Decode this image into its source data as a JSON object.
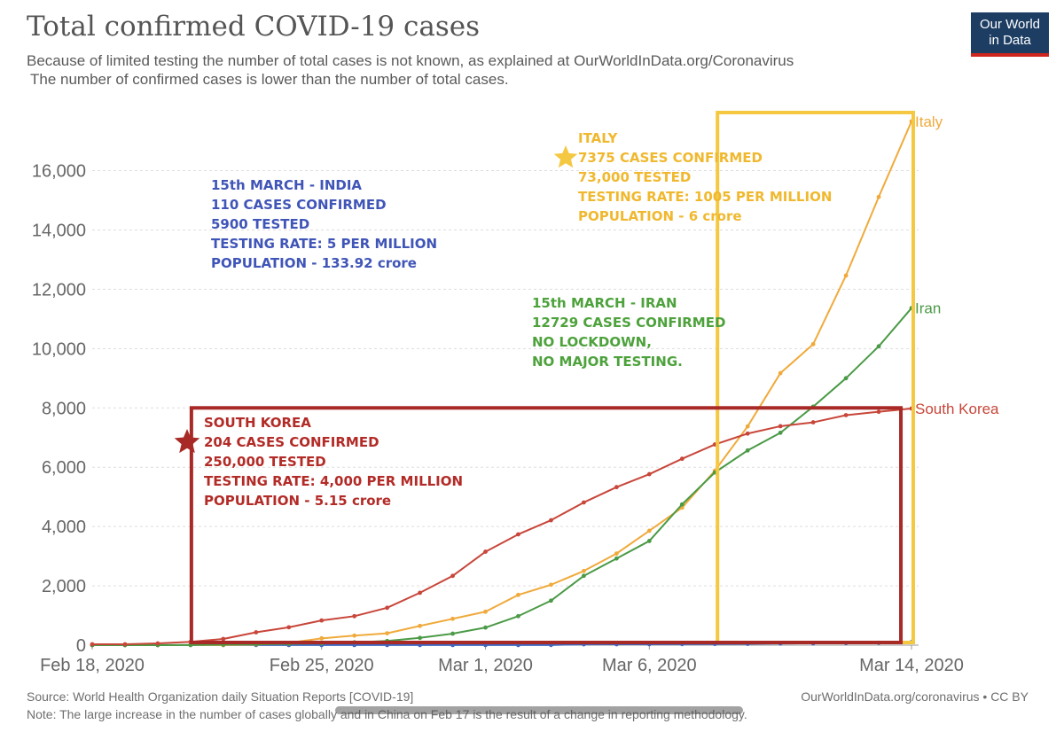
{
  "header": {
    "title": "Total confirmed COVID-19 cases",
    "subtitle_line1": "Because of limited testing the number of total cases is not known, as explained at OurWorldInData.org/Coronavirus",
    "subtitle_line2": "The number of confirmed cases is lower than the number of total cases.",
    "logo_line1": "Our World",
    "logo_line2": "in Data"
  },
  "footer": {
    "source": "Source: World Health Organization daily Situation Reports [COVID-19]",
    "credit": "OurWorldInData.org/coronavirus • CC BY",
    "note": "Note: The large increase in the number of cases globally and in China on Feb 17 is the result of a change in reporting methodology."
  },
  "colors": {
    "italy": "#f0aa3c",
    "iran": "#4a9a46",
    "south_korea": "#c8463a",
    "india": "#3f67c2",
    "italy_box": "#f5c842",
    "korea_box": "#a82a26",
    "india_text": "#4055b8",
    "iran_text": "#4da23c",
    "italy_text": "#f0b82e",
    "korea_text": "#b32b27"
  },
  "chart_data": {
    "type": "line",
    "x": [
      "2020-02-18",
      "2020-02-19",
      "2020-02-20",
      "2020-02-21",
      "2020-02-22",
      "2020-02-23",
      "2020-02-24",
      "2020-02-25",
      "2020-02-26",
      "2020-02-27",
      "2020-02-28",
      "2020-02-29",
      "2020-03-01",
      "2020-03-02",
      "2020-03-03",
      "2020-03-04",
      "2020-03-05",
      "2020-03-06",
      "2020-03-07",
      "2020-03-08",
      "2020-03-09",
      "2020-03-10",
      "2020-03-11",
      "2020-03-12",
      "2020-03-13",
      "2020-03-14"
    ],
    "x_ticks": [
      "Feb 18, 2020",
      "Feb 25, 2020",
      "Mar 1, 2020",
      "Mar 6, 2020",
      "Mar 14, 2020"
    ],
    "x_tick_dates": [
      "2020-02-18",
      "2020-02-25",
      "2020-03-01",
      "2020-03-06",
      "2020-03-14"
    ],
    "y_ticks": [
      0,
      2000,
      4000,
      6000,
      8000,
      10000,
      12000,
      14000,
      16000
    ],
    "y_tick_labels": [
      "0",
      "2,000",
      "4,000",
      "6,000",
      "8,000",
      "10,000",
      "12,000",
      "14,000",
      "16,000"
    ],
    "ylim": [
      0,
      17660
    ],
    "grid": true,
    "series": [
      {
        "name": "Italy",
        "color": "#f0aa3c",
        "values": [
          3,
          3,
          3,
          3,
          3,
          20,
          79,
          229,
          322,
          400,
          650,
          888,
          1128,
          1694,
          2036,
          2502,
          3089,
          3858,
          4636,
          5883,
          7375,
          9172,
          10149,
          12462,
          15113,
          17660
        ]
      },
      {
        "name": "Iran",
        "color": "#4a9a46",
        "values": [
          0,
          0,
          0,
          5,
          18,
          28,
          43,
          61,
          95,
          141,
          245,
          388,
          593,
          978,
          1501,
          2336,
          2922,
          3513,
          4747,
          5823,
          6566,
          7161,
          8042,
          9000,
          10075,
          11364
        ]
      },
      {
        "name": "South Korea",
        "color": "#c8463a",
        "values": [
          30,
          31,
          58,
          111,
          209,
          433,
          602,
          833,
          977,
          1261,
          1766,
          2337,
          3150,
          3736,
          4212,
          4812,
          5328,
          5766,
          6284,
          6767,
          7134,
          7382,
          7513,
          7755,
          7869,
          7979
        ]
      },
      {
        "name": "",
        "color": "#3f67c2",
        "values": [
          3,
          3,
          3,
          3,
          3,
          3,
          3,
          3,
          3,
          3,
          3,
          3,
          3,
          3,
          5,
          28,
          30,
          31,
          34,
          39,
          43,
          56,
          62,
          73,
          82,
          102
        ]
      }
    ],
    "series_labels": [
      {
        "text": "Italy",
        "series": 0
      },
      {
        "text": "Iran",
        "series": 1
      },
      {
        "text": "South Korea",
        "series": 2
      }
    ],
    "annotations": {
      "india": [
        "15th MARCH - INDIA",
        "110 CASES CONFIRMED",
        "5900 TESTED",
        "TESTING RATE: 5 PER MILLION",
        "POPULATION - 133.92 crore"
      ],
      "italy": [
        "ITALY",
        "7375 CASES CONFIRMED",
        "73,000 TESTED",
        "TESTING RATE: 1005 PER MILLION",
        "POPULATION - 6 crore"
      ],
      "iran": [
        "15th MARCH - IRAN",
        "12729 CASES CONFIRMED",
        "NO LOCKDOWN,",
        "NO MAJOR TESTING."
      ],
      "south_korea": [
        "SOUTH KOREA",
        "204 CASES CONFIRMED",
        "250,000 TESTED",
        "TESTING RATE: 4,000 PER MILLION",
        "POPULATION - 5.15 crore"
      ]
    },
    "highlight_boxes": [
      {
        "name": "italy",
        "x_from": "2020-03-09",
        "x_to": "2020-03-14",
        "y_from": 0,
        "y_to": 17660
      },
      {
        "name": "south-korea",
        "x_from": "2020-02-21",
        "x_to": "2020-03-13",
        "y_from": 0,
        "y_to": 8000
      }
    ]
  }
}
